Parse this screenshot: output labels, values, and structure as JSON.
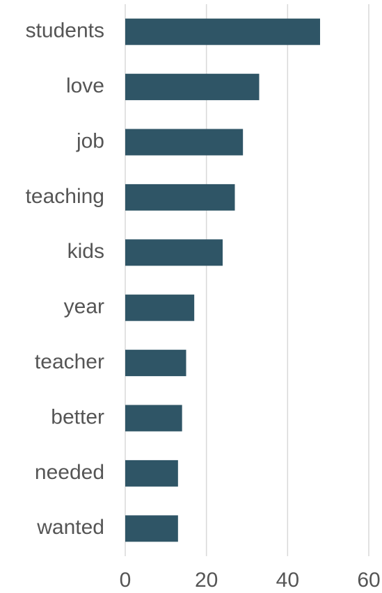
{
  "chart_data": {
    "type": "barh",
    "categories": [
      "students",
      "love",
      "job",
      "teaching",
      "kids",
      "year",
      "teacher",
      "better",
      "needed",
      "wanted"
    ],
    "values": [
      48,
      33,
      29,
      27,
      24,
      17,
      15,
      14,
      13,
      13
    ],
    "color": "#2f5566",
    "xlim": [
      0,
      60
    ],
    "xticks": [
      0,
      20,
      40,
      60
    ],
    "grid": true
  }
}
